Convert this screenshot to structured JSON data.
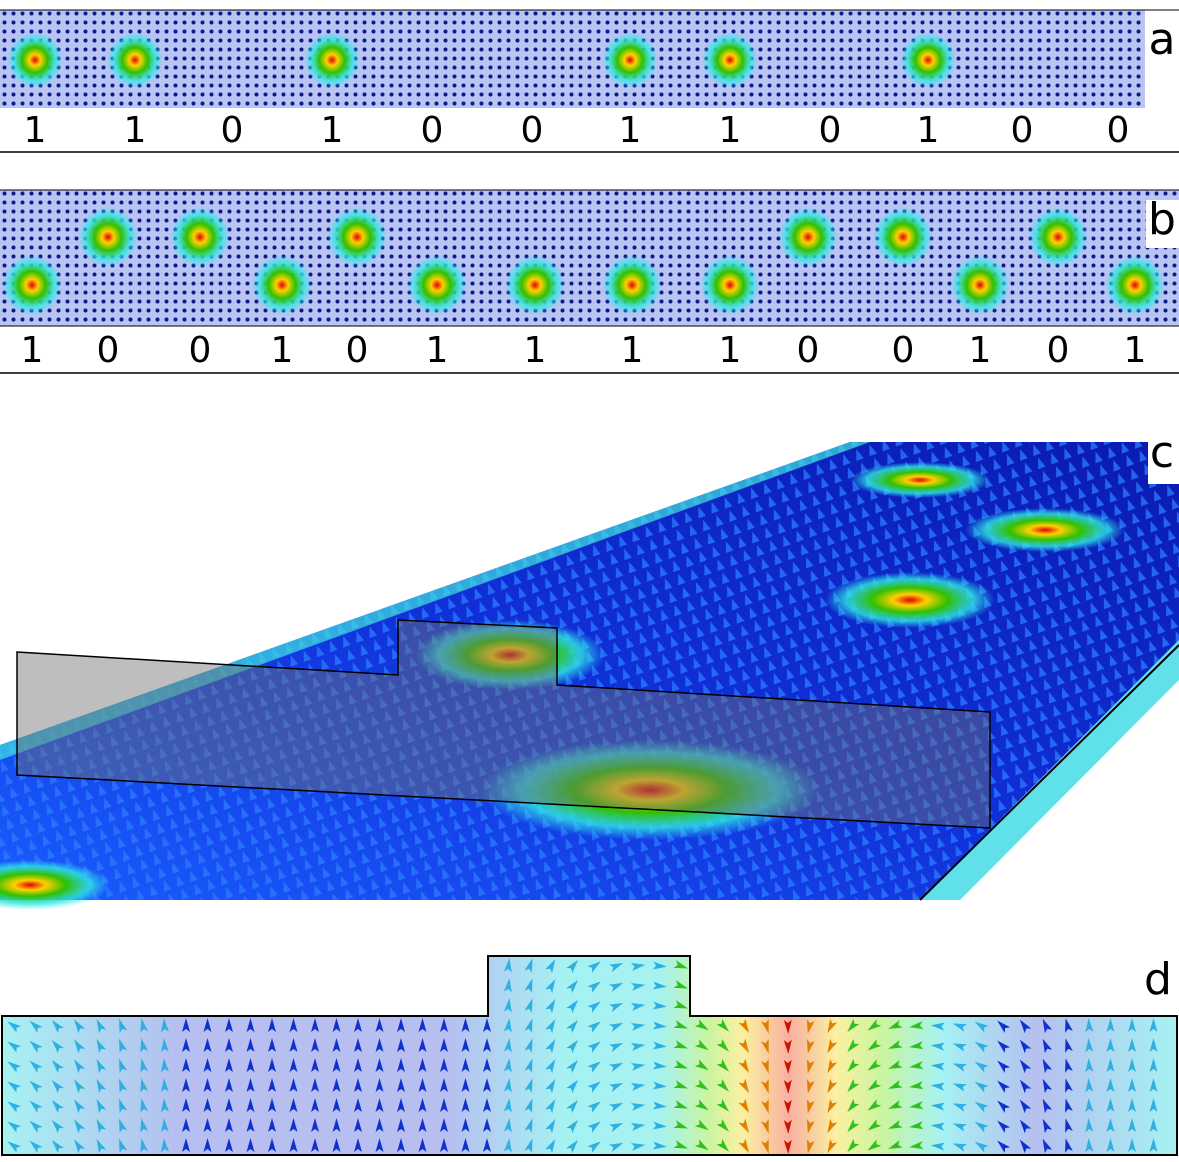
{
  "panels": [
    {
      "label": "a",
      "bits": [
        1,
        1,
        0,
        1,
        0,
        0,
        1,
        1,
        0,
        1,
        0,
        0
      ]
    },
    {
      "label": "b",
      "bits": [
        1,
        0,
        0,
        1,
        0,
        1,
        1,
        1,
        1,
        0,
        0,
        1,
        0,
        1
      ]
    },
    {
      "label": "c"
    },
    {
      "label": "d"
    }
  ]
}
